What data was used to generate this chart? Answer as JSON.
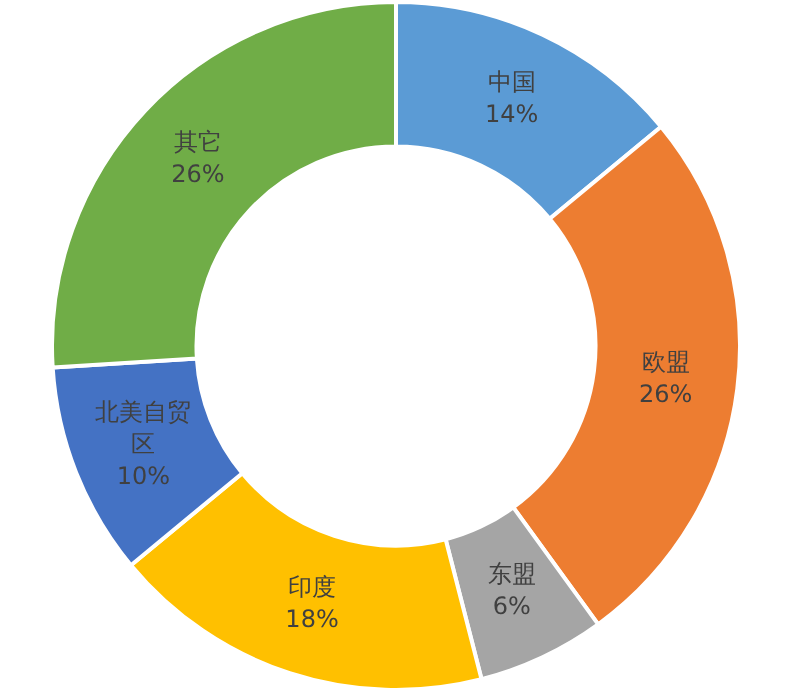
{
  "chart_data": {
    "type": "donut",
    "categories": [
      "中国",
      "欧盟",
      "东盟",
      "印度",
      "北美自贸区",
      "其它"
    ],
    "values": [
      14,
      26,
      6,
      18,
      10,
      26
    ],
    "value_labels": [
      "14%",
      "26%",
      "6%",
      "18%",
      "10%",
      "26%"
    ],
    "colors": [
      "#5b9bd5",
      "#ed7d31",
      "#a5a5a5",
      "#ffc000",
      "#4472c4",
      "#70ad47"
    ],
    "legend": false
  }
}
